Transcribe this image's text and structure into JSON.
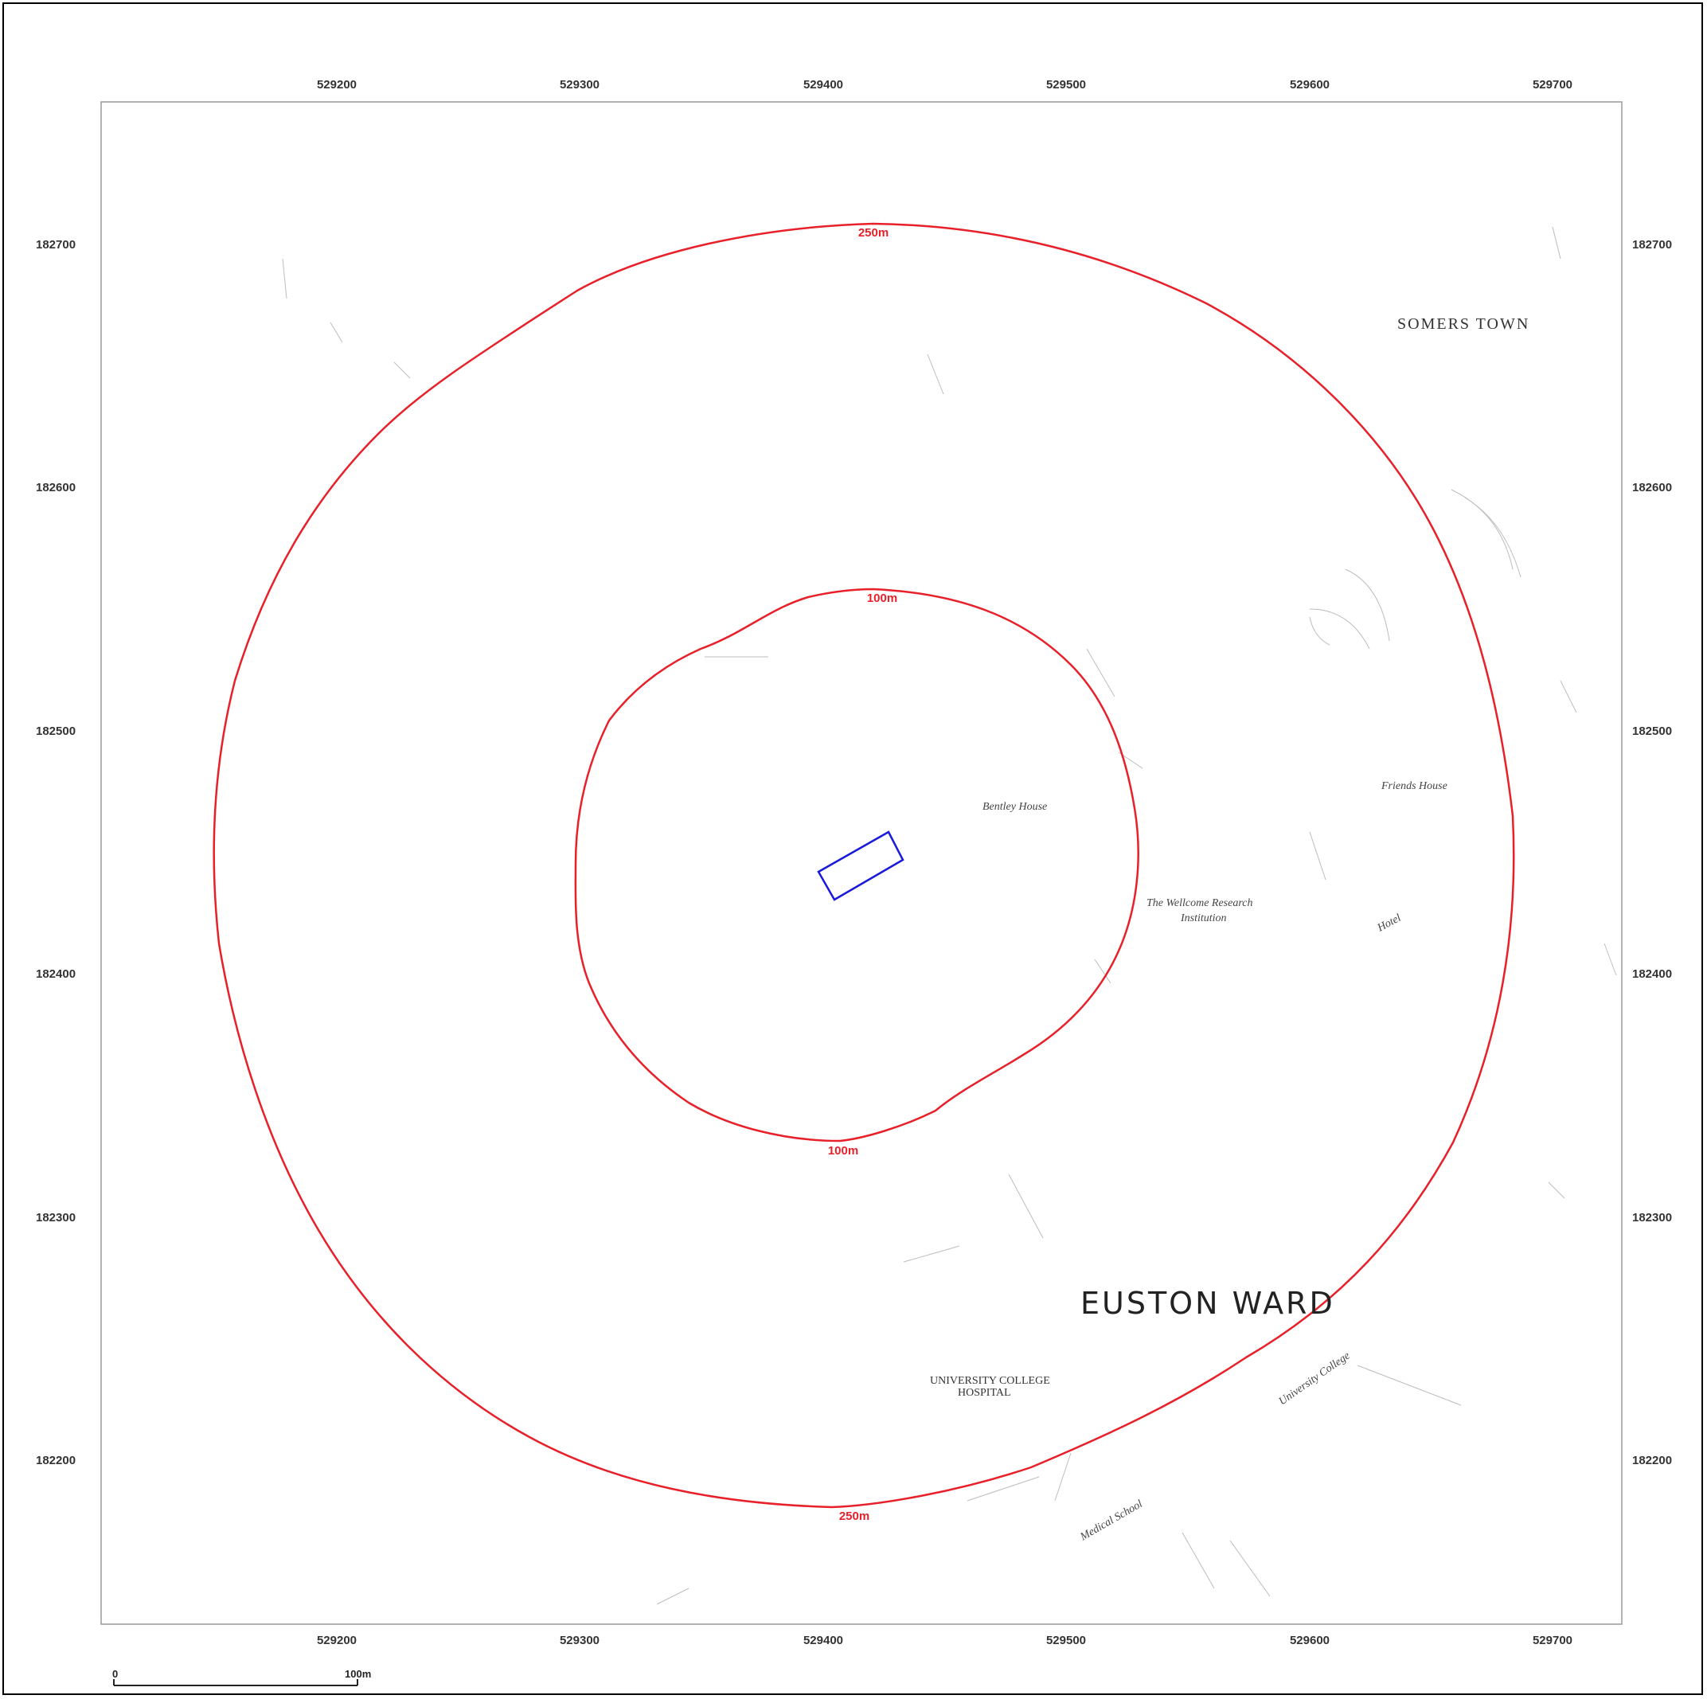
{
  "grid": {
    "eastings": [
      "529200",
      "529300",
      "529400",
      "529500",
      "529600",
      "529700"
    ],
    "northings": [
      "182700",
      "182600",
      "182500",
      "182400",
      "182300",
      "182200"
    ]
  },
  "buffers": {
    "outer_label_top": "250m",
    "outer_label_bottom": "250m",
    "inner_label_top": "100m",
    "inner_label_bottom": "100m",
    "color": "#e8202a"
  },
  "site": {
    "color": "#1a1adb"
  },
  "places": {
    "euston_ward": "EUSTON WARD",
    "somers_town": "SOMERS TOWN"
  },
  "buildings": {
    "friends_house": "Friends House",
    "bentley_house": "Bentley House",
    "wellcome_line1": "The Wellcome Research",
    "wellcome_line2": "Institution",
    "ucl_hospital_line1": "UNIVERSITY COLLEGE",
    "ucl_hospital_line2": "HOSPITAL",
    "university_college": "University College",
    "medical_school": "Medical School",
    "hotel": "Hotel"
  },
  "scale_bar": {
    "start": "0",
    "end": "100m"
  }
}
